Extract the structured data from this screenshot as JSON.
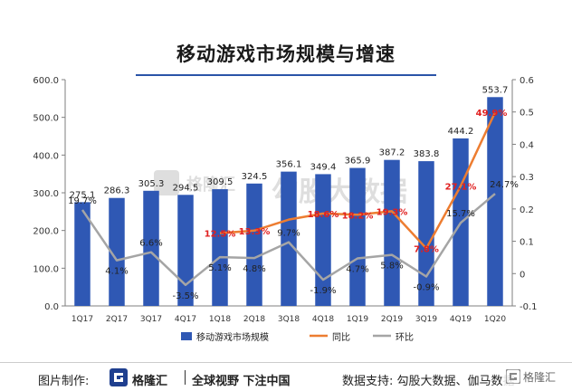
{
  "header": {
    "title": "移动游戏市场规模与增速"
  },
  "footer": {
    "made_by": "图片制作:",
    "brand_name": "格隆汇",
    "slogan": "全球视野 下注中国",
    "source": "数据支持: 勾股大数据、伽马数据",
    "corner_watermark": "格隆汇"
  },
  "watermark": {
    "text": "勾股大数据",
    "logo_text": "格隆汇"
  },
  "colors": {
    "bar": "#2f58b4",
    "yoy_line": "#ed7d31",
    "qoq_line": "#a5a5a5",
    "yoy_label": "#e02020",
    "accent": "#2a54a8"
  },
  "chart_data": {
    "type": "bar",
    "categories": [
      "1Q17",
      "2Q17",
      "3Q17",
      "4Q17",
      "1Q18",
      "2Q18",
      "3Q18",
      "4Q18",
      "1Q19",
      "2Q19",
      "3Q19",
      "4Q19",
      "1Q20"
    ],
    "title": "移动游戏市场规模与增速",
    "xlabel": "",
    "ylabel": "",
    "ylim": [
      0,
      600
    ],
    "y_ticks": [
      "0.0",
      "100.0",
      "200.0",
      "300.0",
      "400.0",
      "500.0",
      "600.0"
    ],
    "y2lim": [
      -0.1,
      0.6
    ],
    "y2_ticks": [
      "-0.1",
      "0",
      "0.1",
      "0.2",
      "0.3",
      "0.4",
      "0.5",
      "0.6"
    ],
    "grid": false,
    "legend_position": "bottom",
    "series": [
      {
        "name": "移动游戏市场规模",
        "type": "bar",
        "axis": "left",
        "values": [
          275.1,
          286.3,
          305.3,
          294.5,
          309.5,
          324.5,
          356.1,
          349.4,
          365.9,
          387.2,
          383.8,
          444.2,
          553.7
        ],
        "labels": [
          "275.1",
          "286.3",
          "305.3",
          "294.5",
          "309.5",
          "324.5",
          "356.1",
          "349.4",
          "365.9",
          "387.2",
          "383.8",
          "444.2",
          "553.7"
        ]
      },
      {
        "name": "同比",
        "type": "line",
        "axis": "right",
        "values": [
          null,
          null,
          null,
          null,
          0.125,
          0.133,
          0.167,
          0.186,
          0.182,
          0.193,
          0.078,
          0.271,
          0.499
        ],
        "labels": [
          "",
          "",
          "",
          "",
          "12.5%",
          "13.3%",
          "",
          "18.6%",
          "18.2%",
          "19.3%",
          "7.8%",
          "27.1%",
          "49.9%"
        ]
      },
      {
        "name": "环比",
        "type": "line",
        "axis": "right",
        "values": [
          0.197,
          0.041,
          0.066,
          -0.035,
          0.051,
          0.048,
          0.097,
          -0.019,
          0.047,
          0.058,
          -0.009,
          0.157,
          0.247
        ],
        "labels": [
          "19.7%",
          "4.1%",
          "6.6%",
          "-3.5%",
          "5.1%",
          "4.8%",
          "9.7%",
          "-1.9%",
          "4.7%",
          "5.8%",
          "-0.9%",
          "15.7%",
          "24.7%"
        ]
      }
    ]
  }
}
